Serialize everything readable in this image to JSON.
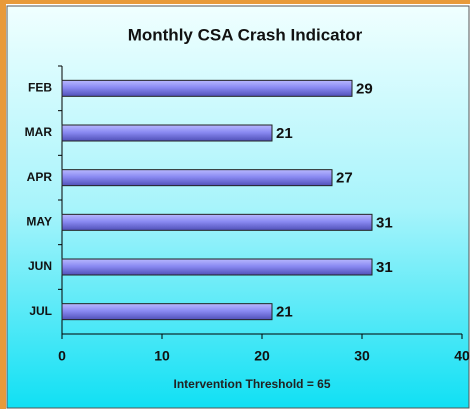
{
  "chart_data": {
    "type": "bar",
    "orientation": "horizontal",
    "title": "Monthly CSA Crash Indicator",
    "x_label": "Intervention Threshold = 65",
    "categories": [
      "FEB",
      "MAR",
      "APR",
      "MAY",
      "JUN",
      "JUL"
    ],
    "values": [
      29,
      21,
      27,
      31,
      31,
      21
    ],
    "color": "#8080f0",
    "xlim": [
      0,
      40
    ],
    "xticks": [
      0,
      10,
      20,
      30,
      40
    ],
    "grid": false
  }
}
